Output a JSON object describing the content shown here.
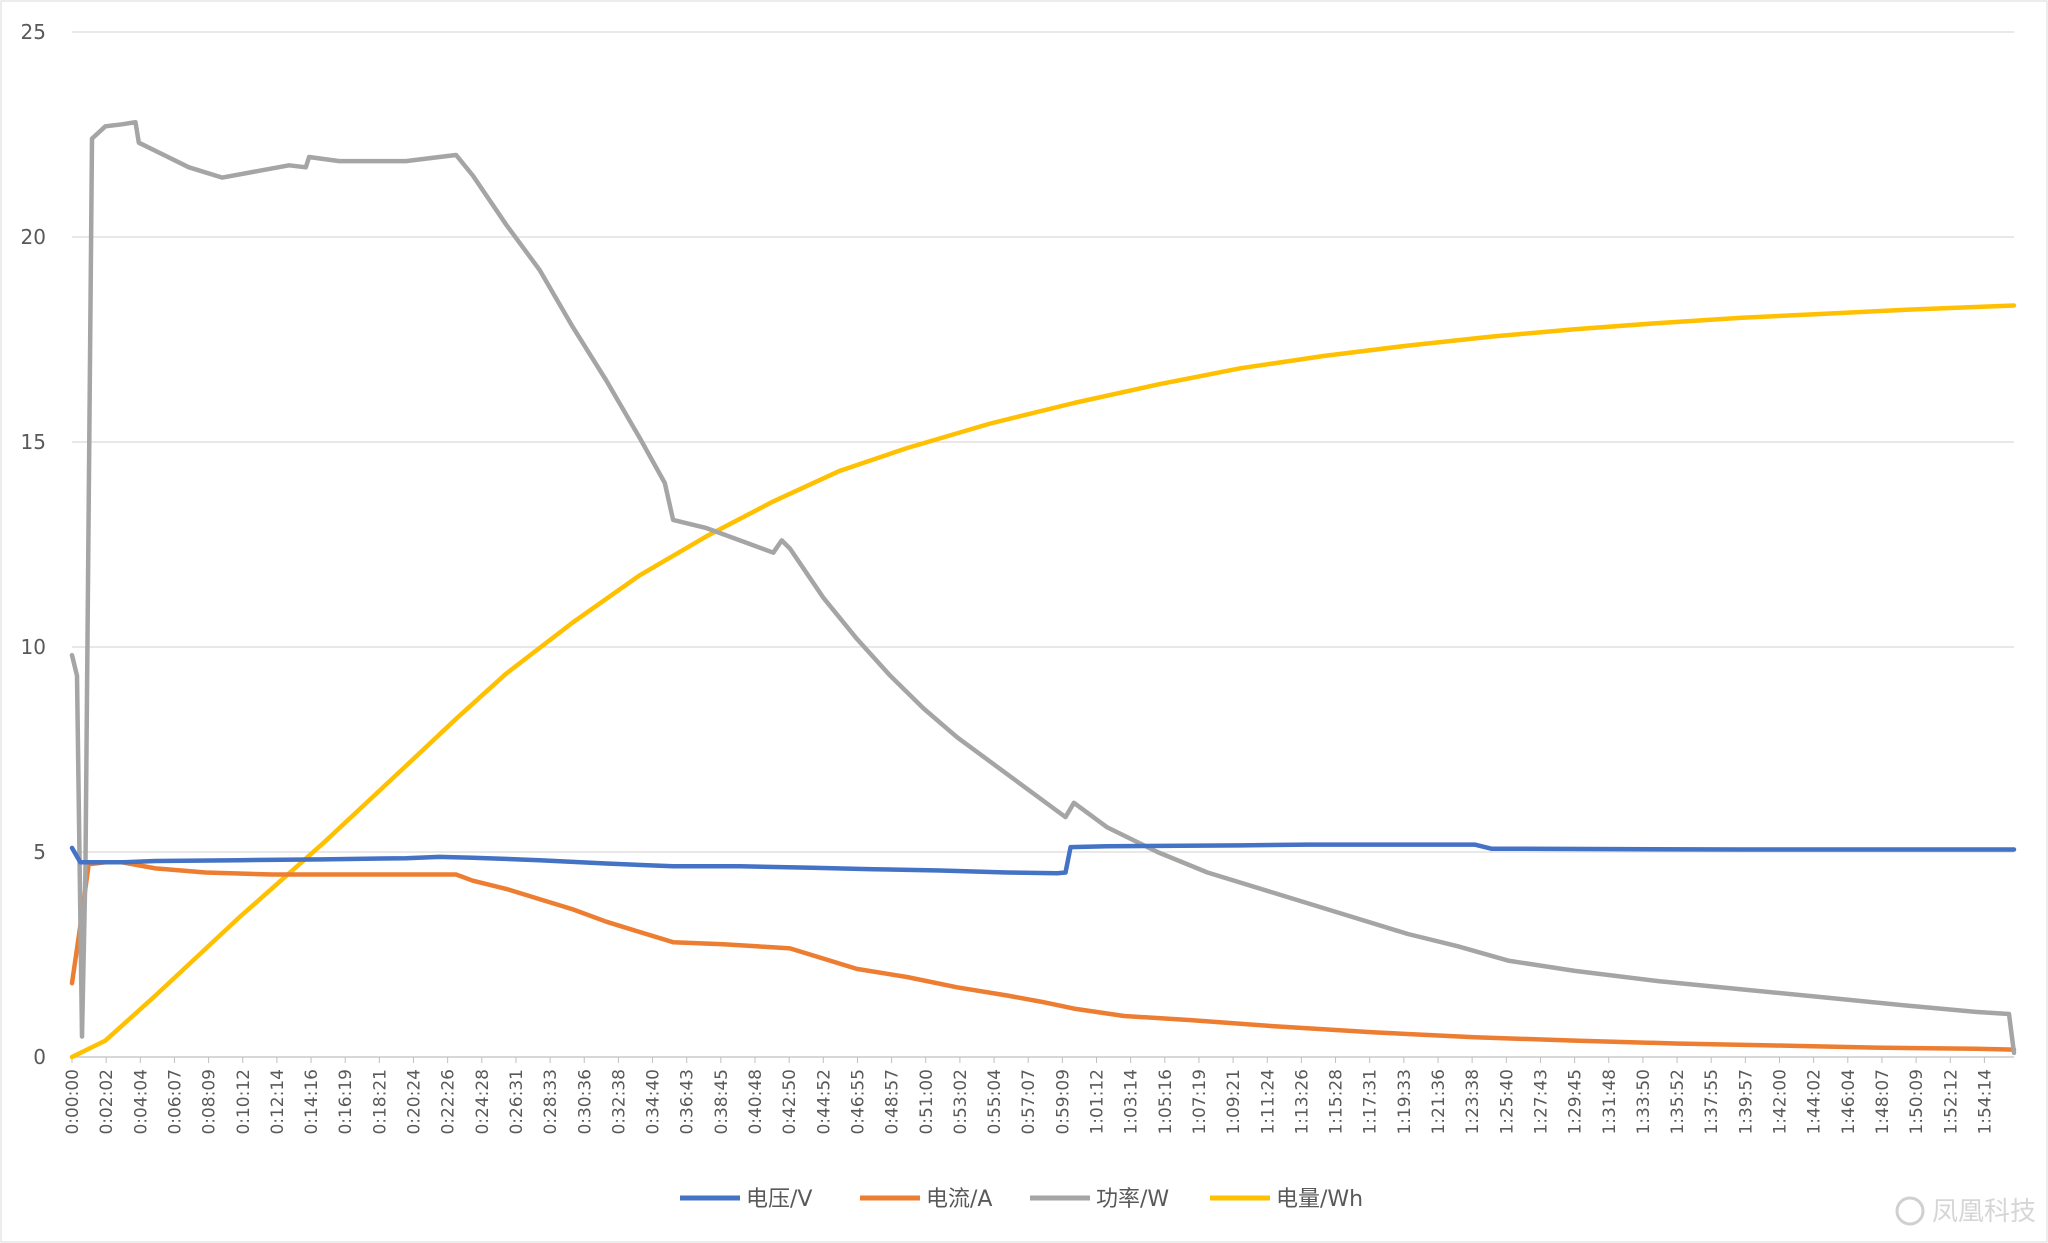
{
  "chart_data": {
    "type": "line",
    "title": "",
    "xlabel": "",
    "ylabel": "",
    "ylim": [
      0,
      25
    ],
    "y_ticks": [
      0,
      5,
      10,
      15,
      20,
      25
    ],
    "grid": "horizontal",
    "legend_position": "bottom",
    "x_tick_labels": [
      "0:00:00",
      "0:02:02",
      "0:04:04",
      "0:06:07",
      "0:08:09",
      "0:10:12",
      "0:12:14",
      "0:14:16",
      "0:16:19",
      "0:18:21",
      "0:20:24",
      "0:22:26",
      "0:24:28",
      "0:26:31",
      "0:28:33",
      "0:30:36",
      "0:32:38",
      "0:34:40",
      "0:36:43",
      "0:38:45",
      "0:40:48",
      "0:42:50",
      "0:44:52",
      "0:46:55",
      "0:48:57",
      "0:51:00",
      "0:53:02",
      "0:55:04",
      "0:57:07",
      "0:59:09",
      "1:01:12",
      "1:03:14",
      "1:05:16",
      "1:07:19",
      "1:09:21",
      "1:11:24",
      "1:13:26",
      "1:15:28",
      "1:17:31",
      "1:19:33",
      "1:21:36",
      "1:23:38",
      "1:25:40",
      "1:27:43",
      "1:29:45",
      "1:31:48",
      "1:33:50",
      "1:35:52",
      "1:37:55",
      "1:39:57",
      "1:42:00",
      "1:44:02",
      "1:46:04",
      "1:48:07",
      "1:50:09",
      "1:52:12",
      "1:54:14"
    ],
    "x_range_minutes": [
      0,
      116.3
    ],
    "series": [
      {
        "name": "电压/V",
        "color": "#4472C4",
        "points": [
          [
            0,
            5.1
          ],
          [
            0.5,
            4.75
          ],
          [
            1,
            4.75
          ],
          [
            3,
            4.75
          ],
          [
            5,
            4.78
          ],
          [
            10,
            4.8
          ],
          [
            15,
            4.82
          ],
          [
            20,
            4.85
          ],
          [
            22,
            4.88
          ],
          [
            24,
            4.86
          ],
          [
            28,
            4.8
          ],
          [
            32,
            4.72
          ],
          [
            36,
            4.65
          ],
          [
            40,
            4.65
          ],
          [
            44,
            4.62
          ],
          [
            48,
            4.58
          ],
          [
            52,
            4.55
          ],
          [
            56,
            4.5
          ],
          [
            59,
            4.48
          ],
          [
            59.5,
            4.5
          ],
          [
            59.8,
            5.12
          ],
          [
            62,
            5.14
          ],
          [
            70,
            5.16
          ],
          [
            74,
            5.18
          ],
          [
            84,
            5.18
          ],
          [
            85,
            5.08
          ],
          [
            100,
            5.06
          ],
          [
            116.3,
            5.06
          ]
        ]
      },
      {
        "name": "电流/A",
        "color": "#ED7D31",
        "points": [
          [
            0,
            1.8
          ],
          [
            0.5,
            3.2
          ],
          [
            1,
            4.7
          ],
          [
            2,
            4.75
          ],
          [
            3,
            4.75
          ],
          [
            5,
            4.6
          ],
          [
            8,
            4.5
          ],
          [
            12,
            4.45
          ],
          [
            18,
            4.45
          ],
          [
            22,
            4.45
          ],
          [
            23,
            4.45
          ],
          [
            24,
            4.3
          ],
          [
            26,
            4.1
          ],
          [
            28,
            3.85
          ],
          [
            30,
            3.6
          ],
          [
            32,
            3.3
          ],
          [
            34,
            3.05
          ],
          [
            36,
            2.8
          ],
          [
            39,
            2.75
          ],
          [
            41,
            2.7
          ],
          [
            43,
            2.65
          ],
          [
            45,
            2.4
          ],
          [
            47,
            2.15
          ],
          [
            50,
            1.95
          ],
          [
            53,
            1.7
          ],
          [
            56,
            1.5
          ],
          [
            58,
            1.35
          ],
          [
            60,
            1.18
          ],
          [
            63,
            1.0
          ],
          [
            67,
            0.9
          ],
          [
            72,
            0.75
          ],
          [
            78,
            0.6
          ],
          [
            84,
            0.48
          ],
          [
            90,
            0.4
          ],
          [
            96,
            0.33
          ],
          [
            102,
            0.28
          ],
          [
            108,
            0.23
          ],
          [
            114,
            0.2
          ],
          [
            116.3,
            0.18
          ]
        ]
      },
      {
        "name": "功率/W",
        "color": "#A5A5A5",
        "points": [
          [
            0,
            9.8
          ],
          [
            0.3,
            9.3
          ],
          [
            0.6,
            0.5
          ],
          [
            0.8,
            4.5
          ],
          [
            1.2,
            22.4
          ],
          [
            2,
            22.7
          ],
          [
            3,
            22.75
          ],
          [
            3.8,
            22.8
          ],
          [
            4,
            22.3
          ],
          [
            5,
            22.1
          ],
          [
            7,
            21.7
          ],
          [
            9,
            21.45
          ],
          [
            11,
            21.6
          ],
          [
            13,
            21.75
          ],
          [
            14,
            21.7
          ],
          [
            14.2,
            21.95
          ],
          [
            16,
            21.85
          ],
          [
            18,
            21.85
          ],
          [
            20,
            21.85
          ],
          [
            22,
            21.95
          ],
          [
            23,
            22.0
          ],
          [
            24,
            21.5
          ],
          [
            26,
            20.3
          ],
          [
            28,
            19.2
          ],
          [
            30,
            17.8
          ],
          [
            32,
            16.5
          ],
          [
            34,
            15.1
          ],
          [
            35.5,
            14.0
          ],
          [
            36,
            13.1
          ],
          [
            38,
            12.9
          ],
          [
            40,
            12.6
          ],
          [
            42,
            12.3
          ],
          [
            42.5,
            12.6
          ],
          [
            43,
            12.4
          ],
          [
            45,
            11.2
          ],
          [
            47,
            10.2
          ],
          [
            49,
            9.3
          ],
          [
            51,
            8.5
          ],
          [
            53,
            7.8
          ],
          [
            55,
            7.2
          ],
          [
            57,
            6.6
          ],
          [
            59,
            6.0
          ],
          [
            59.5,
            5.85
          ],
          [
            60,
            6.2
          ],
          [
            62,
            5.6
          ],
          [
            65,
            5.0
          ],
          [
            68,
            4.5
          ],
          [
            72,
            4.0
          ],
          [
            76,
            3.5
          ],
          [
            80,
            3.0
          ],
          [
            83,
            2.7
          ],
          [
            86,
            2.35
          ],
          [
            90,
            2.1
          ],
          [
            95,
            1.85
          ],
          [
            100,
            1.65
          ],
          [
            105,
            1.45
          ],
          [
            110,
            1.25
          ],
          [
            114,
            1.1
          ],
          [
            116,
            1.05
          ],
          [
            116.3,
            0.1
          ]
        ]
      },
      {
        "name": "电量/Wh",
        "color": "#FFC000",
        "points": [
          [
            0,
            0
          ],
          [
            2,
            0.4
          ],
          [
            5,
            1.5
          ],
          [
            10,
            3.4
          ],
          [
            15,
            5.2
          ],
          [
            20,
            7.1
          ],
          [
            23,
            8.25
          ],
          [
            26,
            9.35
          ],
          [
            30,
            10.6
          ],
          [
            34,
            11.75
          ],
          [
            38,
            12.7
          ],
          [
            42,
            13.55
          ],
          [
            46,
            14.3
          ],
          [
            50,
            14.85
          ],
          [
            55,
            15.45
          ],
          [
            60,
            15.95
          ],
          [
            65,
            16.4
          ],
          [
            70,
            16.8
          ],
          [
            75,
            17.1
          ],
          [
            80,
            17.35
          ],
          [
            85,
            17.57
          ],
          [
            90,
            17.75
          ],
          [
            95,
            17.9
          ],
          [
            100,
            18.03
          ],
          [
            105,
            18.13
          ],
          [
            110,
            18.23
          ],
          [
            116.3,
            18.33
          ]
        ]
      }
    ]
  },
  "legend": {
    "items": [
      "电压/V",
      "电流/A",
      "功率/W",
      "电量/Wh"
    ]
  },
  "watermark": {
    "text": "凤凰科技"
  }
}
